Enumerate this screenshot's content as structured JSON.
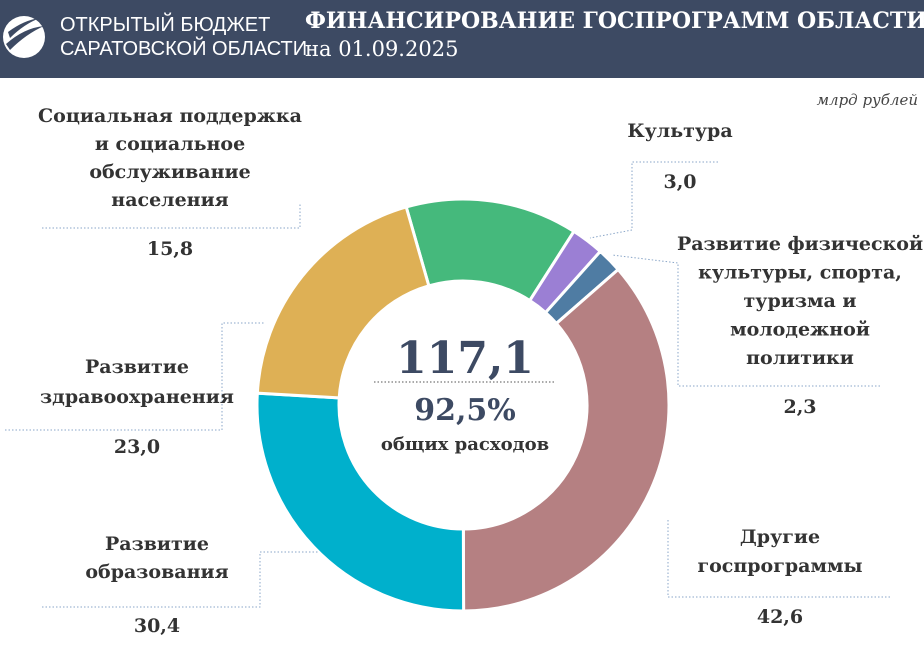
{
  "header": {
    "logo_lines": [
      "ОТКРЫТЫЙ БЮДЖЕТ",
      "САРАТОВСКОЙ ОБЛАСТИ"
    ],
    "title": "ФИНАНСИРОВАНИЕ ГОСПРОГРАММ ОБЛАСТИ",
    "subtitle": "на 01.09.2025"
  },
  "chart_data": {
    "type": "donut",
    "unit": "млрд рублей",
    "categories": [
      "Социальная поддержка\nи социальное\nобслуживание\nнаселения",
      "Культура",
      "Развитие физической\nкультуры, спорта,\nтуризма и\nмолодежной\nполитики",
      "Другие\nгоспрограммы",
      "Развитие\nобразования",
      "Развитие\nздравоохранения"
    ],
    "values": [
      15.8,
      3.0,
      2.3,
      42.6,
      30.4,
      23.0
    ],
    "value_labels": [
      "15,8",
      "3,0",
      "2,3",
      "42,6",
      "30,4",
      "23,0"
    ],
    "colors": [
      "#45b97c",
      "#9b7fd4",
      "#4f7ca3",
      "#b58082",
      "#00b0cc",
      "#deb055"
    ],
    "total": {
      "value": 117.1,
      "label": "117,1"
    },
    "share": {
      "value": 92.5,
      "label": "92,5%"
    },
    "share_caption": "общих расходов"
  }
}
